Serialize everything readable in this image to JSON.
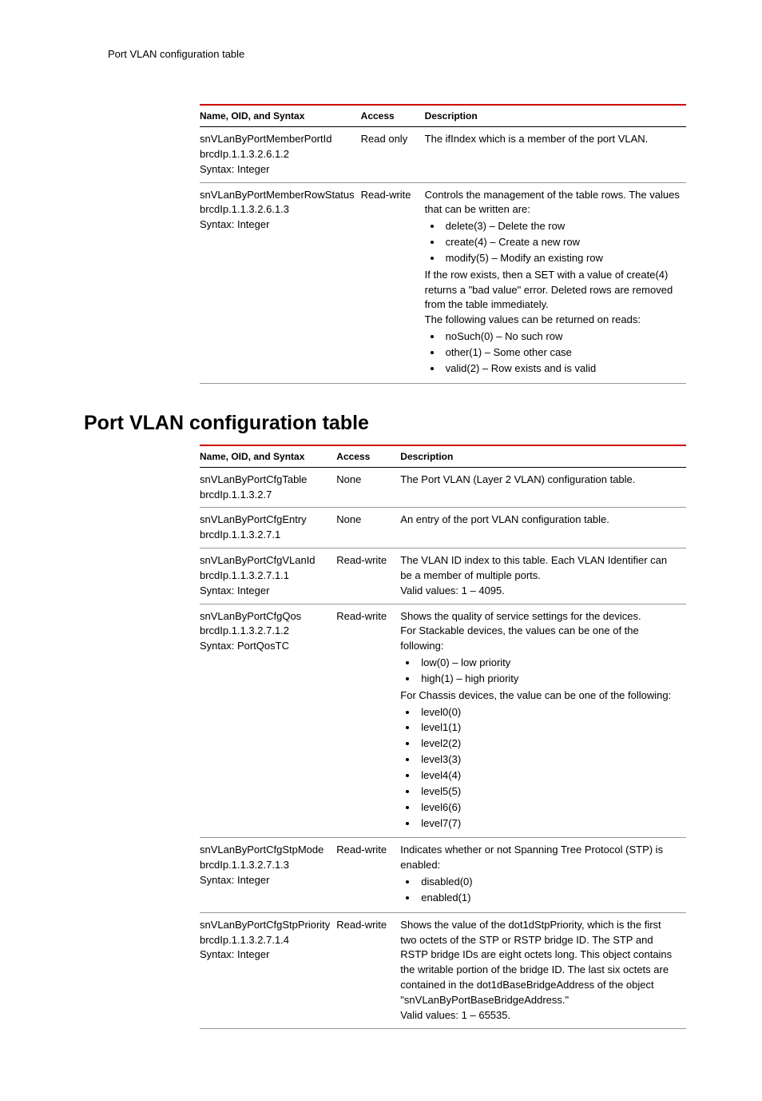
{
  "page_header": "Port VLAN configuration table",
  "columns": {
    "c1": "Name, OID, and Syntax",
    "c2": "Access",
    "c3": "Description"
  },
  "table1": {
    "r1": {
      "name_l1": "snVLanByPortMemberPortId",
      "name_l2": "brcdIp.1.1.3.2.6.1.2",
      "name_l3": "Syntax: Integer",
      "access": "Read only",
      "desc_l1": "The ifIndex which is a member of the port VLAN."
    },
    "r2": {
      "name_l1": "snVLanByPortMemberRowStatus",
      "name_l2": "brcdIp.1.1.3.2.6.1.3",
      "name_l3": "Syntax: Integer",
      "access": "Read-write",
      "desc_l1": "Controls the management of the table rows. The values that can be written are:",
      "b1": "delete(3) – Delete the row",
      "b2": "create(4) – Create a new row",
      "b3": "modify(5) – Modify an existing row",
      "desc_l2": "If the row exists, then a SET with a value of create(4) returns a \"bad value\" error. Deleted rows are removed from the table immediately.",
      "desc_l3": "The following values can be returned on reads:",
      "b4": "noSuch(0) – No such row",
      "b5": "other(1) – Some other case",
      "b6": "valid(2) – Row exists and is valid"
    }
  },
  "section_title": "Port VLAN configuration table",
  "table2": {
    "r1": {
      "name_l1": "snVLanByPortCfgTable",
      "name_l2": "brcdIp.1.1.3.2.7",
      "access": "None",
      "desc_l1": "The Port VLAN (Layer 2 VLAN) configuration table."
    },
    "r2": {
      "name_l1": "snVLanByPortCfgEntry",
      "name_l2": "brcdIp.1.1.3.2.7.1",
      "access": "None",
      "desc_l1": "An entry of the port VLAN configuration table."
    },
    "r3": {
      "name_l1": "snVLanByPortCfgVLanId",
      "name_l2": "brcdIp.1.1.3.2.7.1.1",
      "name_l3": "Syntax: Integer",
      "access": "Read-write",
      "desc_l1": "The VLAN ID index to this table. Each VLAN Identifier can be a member of multiple ports.",
      "desc_l2": "Valid values: 1 – 4095."
    },
    "r4": {
      "name_l1": "snVLanByPortCfgQos",
      "name_l2": "brcdIp.1.1.3.2.7.1.2",
      "name_l3": "Syntax: PortQosTC",
      "access": "Read-write",
      "desc_l1": "Shows the quality of service settings for the devices.",
      "desc_l2": "For Stackable devices, the values can be one of the following:",
      "b1": "low(0) – low priority",
      "b2": "high(1) – high priority",
      "desc_l3": "For Chassis devices, the value can be one of the following:",
      "b3": "level0(0)",
      "b4": "level1(1)",
      "b5": "level2(2)",
      "b6": "level3(3)",
      "b7": "level4(4)",
      "b8": "level5(5)",
      "b9": "level6(6)",
      "b10": "level7(7)"
    },
    "r5": {
      "name_l1": "snVLanByPortCfgStpMode",
      "name_l2": "brcdIp.1.1.3.2.7.1.3",
      "name_l3": "Syntax: Integer",
      "access": "Read-write",
      "desc_l1": "Indicates whether or not Spanning Tree Protocol (STP) is enabled:",
      "b1": "disabled(0)",
      "b2": "enabled(1)"
    },
    "r6": {
      "name_l1": "snVLanByPortCfgStpPriority",
      "name_l2": "brcdIp.1.1.3.2.7.1.4",
      "name_l3": "Syntax: Integer",
      "access": "Read-write",
      "desc_l1": "Shows the value of the dot1dStpPriority, which is the first two octets of the STP or RSTP bridge ID. The STP and RSTP bridge IDs are eight octets long. This object contains the writable portion of the bridge ID. The last six octets are contained in the dot1dBaseBridgeAddress of the object \"snVLanByPortBaseBridgeAddress.\"",
      "desc_l2": "Valid values: 1 – 65535."
    }
  }
}
